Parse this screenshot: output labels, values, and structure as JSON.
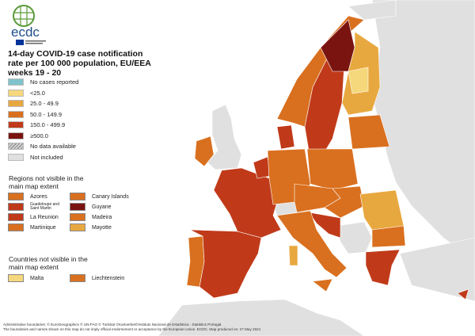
{
  "logo": {
    "text": "ecdc",
    "subtext": "European Centre for Disease Prevention and Control"
  },
  "title": "14-day COVID-19 case notification rate per 100 000 population, EU/EEA weeks 19 - 20",
  "legend": [
    {
      "label": "No cases reported",
      "color": "#7fc4cc"
    },
    {
      "label": "<25.0",
      "color": "#f5d77c"
    },
    {
      "label": "25.0 - 49.9",
      "color": "#e8a840"
    },
    {
      "label": "50.0 - 149.9",
      "color": "#d9701f"
    },
    {
      "label": "150.0 - 499.9",
      "color": "#c03a1a"
    },
    {
      "label": "≥500.0",
      "color": "#7a1410"
    },
    {
      "label": "No data available",
      "color": "hatched-gray"
    },
    {
      "label": "Not included",
      "color": "#e0e0e0"
    }
  ],
  "regions": {
    "heading": "Regions not visible in the main map extent",
    "items": [
      {
        "label": "Azores",
        "color": "#d9701f"
      },
      {
        "label": "Canary Islands",
        "color": "#d9701f"
      },
      {
        "label": "Guadeloupe and Saint Martin",
        "color": "#c03a1a"
      },
      {
        "label": "Guyane",
        "color": "#7a1410"
      },
      {
        "label": "La Reunion",
        "color": "#c03a1a"
      },
      {
        "label": "Madeira",
        "color": "#d9701f"
      },
      {
        "label": "Martinique",
        "color": "#d9701f"
      },
      {
        "label": "Mayotte",
        "color": "#e8a840"
      }
    ]
  },
  "countries": {
    "heading": "Countries not visible in the main map extent",
    "items": [
      {
        "label": "Malta",
        "color": "#f5d77c"
      },
      {
        "label": "Liechtenstein",
        "color": "#d9701f"
      }
    ]
  },
  "footer": {
    "line1": "Administrative boundaries: © EuroGeographics © UN-FAO © Turkstat ©Kartverket©Instituto Nacional de Estatística - Statistics Portugal.",
    "line2": "The boundaries and names shown on this map do not imply official endorsement or acceptance by the European Union. ECDC. Map produced on: 27 May 2021"
  }
}
